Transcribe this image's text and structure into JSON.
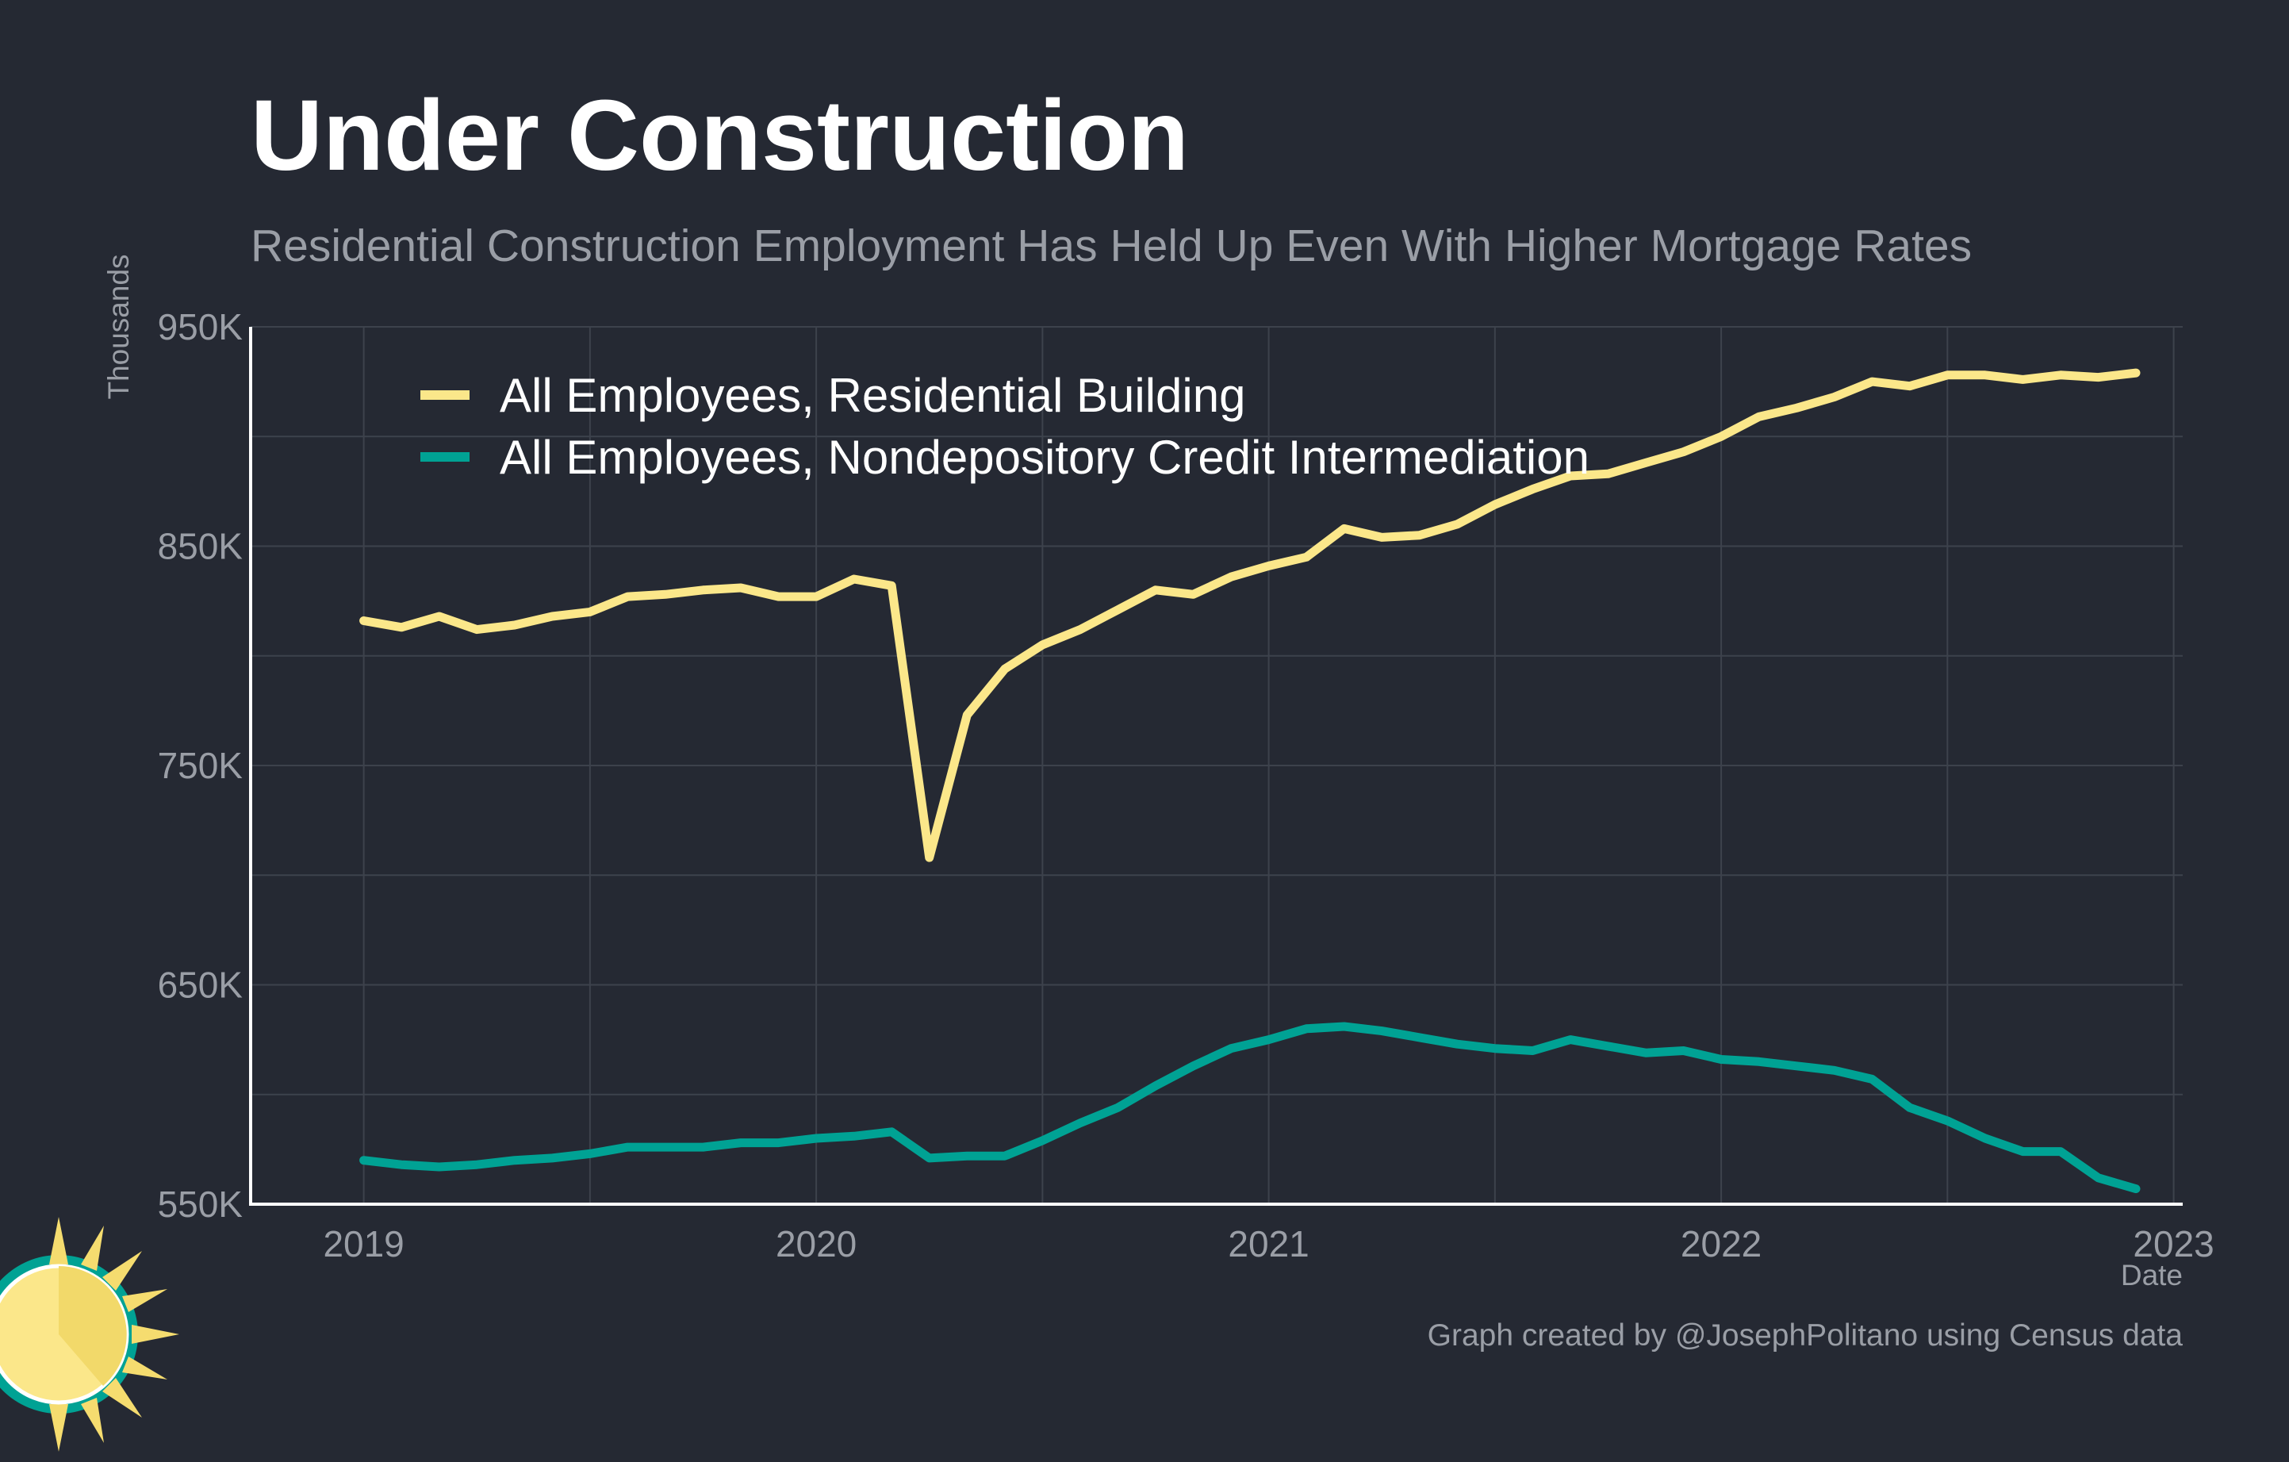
{
  "title": "Under Construction",
  "subtitle": "Residential Construction Employment Has Held Up Even With Higher Mortgage Rates",
  "credit": "Graph created by @JosephPolitano using Census data",
  "colors": {
    "background": "#252933",
    "grid": "#3d424c",
    "axis": "#ffffff",
    "residential": "#fbe78a",
    "nondepository": "#00a294"
  },
  "logo_icon": "sun-icon",
  "chart_data": {
    "type": "line",
    "title": "Under Construction",
    "subtitle": "Residential Construction Employment Has Held Up Even With Higher Mortgage Rates",
    "xlabel": "Date",
    "ylabel": "Thousands",
    "x_start": "2019-01",
    "x_frequency": "monthly",
    "xlim": [
      "2018-10",
      "2023-01"
    ],
    "ylim": [
      550,
      950
    ],
    "yticks": [
      550,
      650,
      750,
      850,
      950
    ],
    "ytick_labels": [
      "550K",
      "650K",
      "750K",
      "850K",
      "950K"
    ],
    "xticks": [
      2019,
      2020,
      2021,
      2022,
      2023
    ],
    "xtick_labels": [
      "2019",
      "2020",
      "2021",
      "2022",
      "2023"
    ],
    "grid": true,
    "legend_position": "top-left",
    "series": [
      {
        "name": "All Employees, Residential Building",
        "color": "#fbe78a",
        "values": [
          816,
          813,
          818,
          812,
          814,
          818,
          820,
          827,
          828,
          830,
          831,
          827,
          827,
          835,
          832,
          708,
          773,
          794,
          805,
          812,
          821,
          830,
          828,
          836,
          841,
          845,
          858,
          854,
          855,
          860,
          869,
          876,
          882,
          883,
          888,
          893,
          900,
          909,
          913,
          918,
          925,
          923,
          928,
          928,
          926,
          928,
          927,
          929
        ]
      },
      {
        "name": "All Employees, Nondepository Credit Intermediation",
        "color": "#00a294",
        "values": [
          570,
          568,
          567,
          568,
          570,
          571,
          573,
          576,
          576,
          576,
          578,
          578,
          580,
          581,
          583,
          571,
          572,
          572,
          579,
          587,
          594,
          604,
          613,
          621,
          625,
          630,
          631,
          629,
          626,
          623,
          621,
          620,
          625,
          622,
          619,
          620,
          616,
          615,
          613,
          611,
          607,
          594,
          588,
          580,
          574,
          574,
          562,
          557
        ]
      }
    ]
  }
}
